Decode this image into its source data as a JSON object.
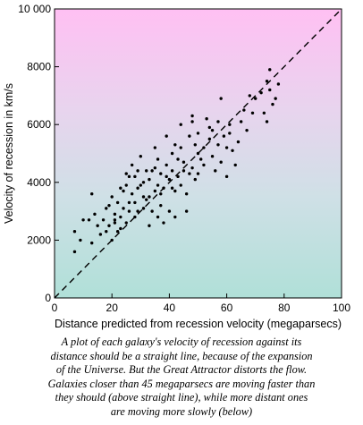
{
  "chart_data": {
    "type": "scatter",
    "title": "",
    "xlabel": "Distance predicted from recession velocity (megaparsecs)",
    "ylabel": "Velocity of recession in km/s",
    "xlim": [
      0,
      100
    ],
    "ylim": [
      0,
      10000
    ],
    "x_ticks": [
      0,
      20,
      40,
      60,
      80,
      100
    ],
    "y_ticks": [
      0,
      2000,
      4000,
      6000,
      8000,
      10000
    ],
    "x_tick_labels": [
      "0",
      "20",
      "40",
      "60",
      "80",
      "100"
    ],
    "y_tick_labels": [
      "0",
      "2000",
      "4000",
      "6000",
      "8000",
      "10 000"
    ],
    "grid": false,
    "background_gradient": [
      "#ffc0f3",
      "#e8d4ee",
      "#cfe0e6",
      "#b0e0d8"
    ],
    "point_color": "#000000",
    "reference_line": {
      "style": "dashed",
      "points": [
        [
          0,
          0
        ],
        [
          100,
          10000
        ]
      ]
    },
    "series": [
      {
        "points": [
          [
            7,
            1600
          ],
          [
            9,
            2000
          ],
          [
            7,
            2300
          ],
          [
            10,
            2700
          ],
          [
            13,
            1900
          ],
          [
            15,
            2500
          ],
          [
            16,
            2200
          ],
          [
            17,
            2700
          ],
          [
            18,
            3100
          ],
          [
            13,
            3600
          ],
          [
            12,
            2700
          ],
          [
            14,
            2900
          ],
          [
            18,
            2300
          ],
          [
            19,
            2500
          ],
          [
            20,
            2000
          ],
          [
            21,
            2700
          ],
          [
            20,
            3500
          ],
          [
            22,
            3300
          ],
          [
            23,
            2800
          ],
          [
            24,
            3100
          ],
          [
            24,
            3700
          ],
          [
            25,
            3900
          ],
          [
            26,
            4200
          ],
          [
            25,
            2600
          ],
          [
            22,
            2300
          ],
          [
            21,
            2600
          ],
          [
            27,
            3600
          ],
          [
            28,
            3300
          ],
          [
            29,
            3000
          ],
          [
            28,
            4200
          ],
          [
            30,
            3900
          ],
          [
            31,
            3500
          ],
          [
            32,
            4400
          ],
          [
            33,
            4100
          ],
          [
            33,
            3500
          ],
          [
            34,
            3000
          ],
          [
            35,
            3700
          ],
          [
            35,
            4500
          ],
          [
            36,
            4800
          ],
          [
            37,
            4300
          ],
          [
            38,
            3800
          ],
          [
            37,
            3200
          ],
          [
            39,
            4600
          ],
          [
            40,
            4100
          ],
          [
            41,
            4400
          ],
          [
            41,
            5000
          ],
          [
            42,
            5300
          ],
          [
            42,
            3700
          ],
          [
            43,
            4800
          ],
          [
            44,
            5200
          ],
          [
            45,
            4400
          ],
          [
            44,
            3900
          ],
          [
            46,
            3000
          ],
          [
            47,
            5600
          ],
          [
            48,
            6300
          ],
          [
            48,
            4500
          ],
          [
            49,
            4100
          ],
          [
            50,
            5700
          ],
          [
            50,
            5000
          ],
          [
            51,
            4800
          ],
          [
            52,
            4600
          ],
          [
            53,
            6200
          ],
          [
            54,
            5900
          ],
          [
            55,
            4900
          ],
          [
            56,
            4400
          ],
          [
            57,
            5300
          ],
          [
            58,
            4700
          ],
          [
            58,
            6900
          ],
          [
            59,
            5600
          ],
          [
            60,
            5200
          ],
          [
            60,
            4200
          ],
          [
            61,
            5700
          ],
          [
            62,
            5100
          ],
          [
            63,
            4600
          ],
          [
            64,
            5400
          ],
          [
            65,
            6100
          ],
          [
            66,
            6500
          ],
          [
            67,
            5800
          ],
          [
            68,
            7000
          ],
          [
            69,
            6400
          ],
          [
            70,
            6900
          ],
          [
            72,
            7100
          ],
          [
            73,
            6400
          ],
          [
            74,
            6100
          ],
          [
            74,
            7500
          ],
          [
            75,
            7200
          ],
          [
            76,
            6700
          ],
          [
            75,
            7900
          ],
          [
            77,
            6900
          ],
          [
            78,
            7400
          ],
          [
            19,
            3200
          ],
          [
            23,
            3800
          ],
          [
            26,
            3000
          ],
          [
            29,
            3800
          ],
          [
            31,
            4000
          ],
          [
            34,
            4400
          ],
          [
            36,
            3900
          ],
          [
            39,
            4200
          ],
          [
            43,
            4200
          ],
          [
            45,
            4700
          ],
          [
            47,
            4300
          ],
          [
            49,
            5300
          ],
          [
            52,
            5200
          ],
          [
            55,
            5800
          ],
          [
            57,
            6100
          ],
          [
            29,
            4400
          ],
          [
            32,
            3400
          ],
          [
            36,
            2800
          ],
          [
            40,
            3000
          ],
          [
            46,
            3600
          ],
          [
            33,
            2500
          ],
          [
            38,
            2600
          ],
          [
            42,
            2800
          ],
          [
            25,
            4300
          ],
          [
            27,
            4600
          ],
          [
            30,
            4900
          ],
          [
            35,
            5200
          ],
          [
            39,
            5600
          ],
          [
            44,
            6000
          ],
          [
            48,
            6100
          ],
          [
            21,
            2900
          ],
          [
            23,
            2400
          ],
          [
            26,
            3300
          ],
          [
            28,
            2800
          ],
          [
            31,
            3100
          ],
          [
            37,
            3600
          ],
          [
            41,
            3800
          ],
          [
            50,
            4300
          ],
          [
            54,
            5500
          ],
          [
            61,
            6000
          ]
        ]
      }
    ]
  },
  "caption": {
    "lines": [
      "A plot of each galaxy's velocity of recession against its",
      "distance should be a straight line, because of the expansion",
      "of the Universe. But the Great Attractor distorts the flow.",
      "Galaxies closer than 45 megaparsecs are moving faster than",
      "they should (above straight line), while more distant ones",
      "are moving more slowly (below)"
    ]
  }
}
